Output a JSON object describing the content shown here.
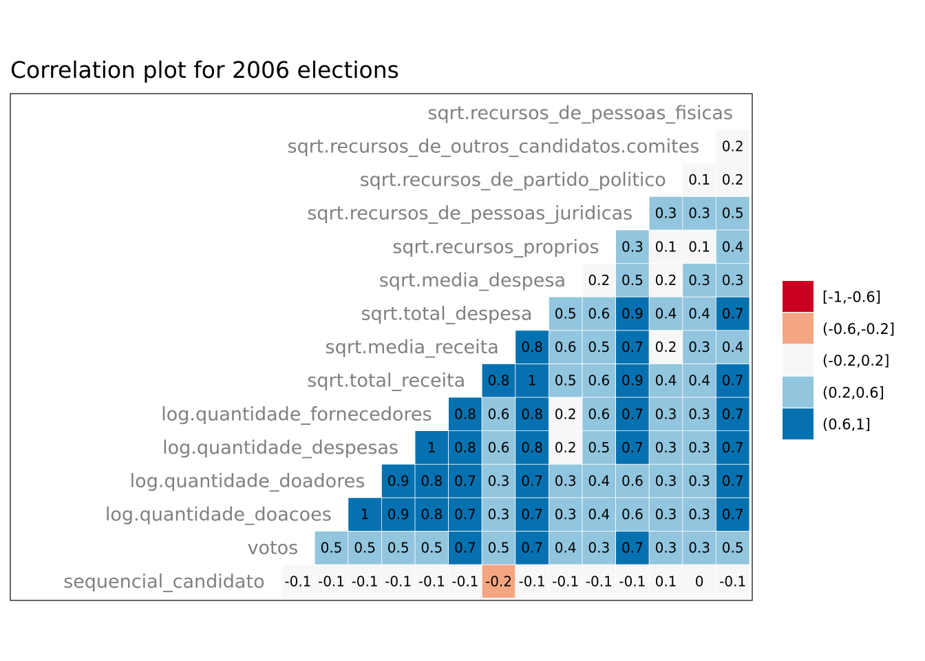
{
  "chart_data": {
    "type": "heatmap",
    "title": "Correlation plot for 2006 elections",
    "variables": [
      "sequencial_candidato",
      "votos",
      "log.quantidade_doacoes",
      "log.quantidade_doadores",
      "log.quantidade_despesas",
      "log.quantidade_fornecedores",
      "sqrt.total_receita",
      "sqrt.media_receita",
      "sqrt.total_despesa",
      "sqrt.media_despesa",
      "sqrt.recursos_proprios",
      "sqrt.recursos_de_pessoas_juridicas",
      "sqrt.recursos_de_partido_politico",
      "sqrt.recursos_de_outros_candidatos.comites",
      "sqrt.recursos_de_pessoas_fisicas"
    ],
    "correlations": [
      [
        -0.1,
        -0.1,
        -0.1,
        -0.1,
        -0.1,
        -0.1,
        -0.2,
        -0.1,
        -0.1,
        -0.1,
        -0.1,
        0.1,
        0,
        -0.1
      ],
      [
        0.5,
        0.5,
        0.5,
        0.5,
        0.7,
        0.5,
        0.7,
        0.4,
        0.3,
        0.7,
        0.3,
        0.3,
        0.5
      ],
      [
        1,
        0.9,
        0.8,
        0.7,
        0.3,
        0.7,
        0.3,
        0.4,
        0.6,
        0.3,
        0.3,
        0.7
      ],
      [
        0.9,
        0.8,
        0.7,
        0.3,
        0.7,
        0.3,
        0.4,
        0.6,
        0.3,
        0.3,
        0.7
      ],
      [
        1,
        0.8,
        0.6,
        0.8,
        0.2,
        0.5,
        0.7,
        0.3,
        0.3,
        0.7
      ],
      [
        0.8,
        0.6,
        0.8,
        0.2,
        0.6,
        0.7,
        0.3,
        0.3,
        0.7
      ],
      [
        0.8,
        1,
        0.5,
        0.6,
        0.9,
        0.4,
        0.4,
        0.7
      ],
      [
        0.8,
        0.6,
        0.5,
        0.7,
        0.2,
        0.3,
        0.4
      ],
      [
        0.5,
        0.6,
        0.9,
        0.4,
        0.4,
        0.7
      ],
      [
        0.2,
        0.5,
        0.2,
        0.3,
        0.3
      ],
      [
        0.3,
        0.1,
        0.1,
        0.4
      ],
      [
        0.3,
        0.3,
        0.5
      ],
      [
        0.1,
        0.2
      ],
      [
        0.2
      ],
      []
    ],
    "bins": [
      {
        "label": "[-1,-0.6]",
        "min": -1.0,
        "max": -0.6,
        "color": "#CA0020"
      },
      {
        "label": "(-0.6,-0.2]",
        "min": -0.6,
        "max": -0.2,
        "color": "#F4A582"
      },
      {
        "label": "(-0.2,0.2]",
        "min": -0.2,
        "max": 0.2,
        "color": "#F7F7F7"
      },
      {
        "label": "(0.2,0.6]",
        "min": 0.2,
        "max": 0.6,
        "color": "#92C5DE"
      },
      {
        "label": "(0.6,1]",
        "min": 0.6,
        "max": 1.0,
        "color": "#0571B0"
      }
    ],
    "legend": "right",
    "grid": false
  }
}
